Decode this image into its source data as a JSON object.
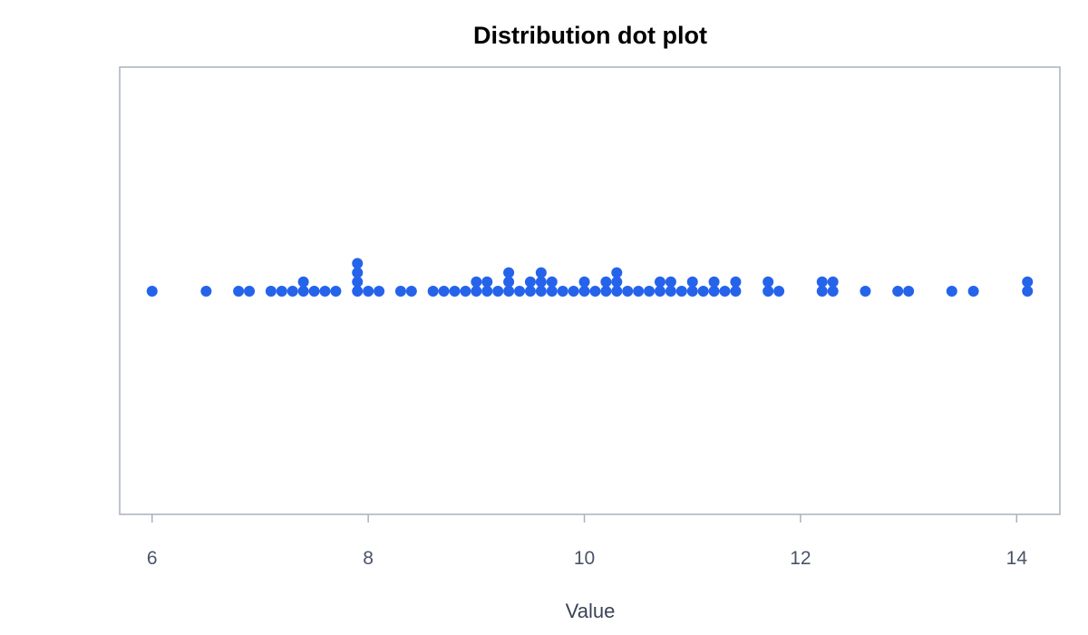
{
  "chart_data": {
    "type": "scatter",
    "subtype": "dot-plot",
    "title": "Distribution dot plot",
    "xlabel": "Value",
    "ylabel": "",
    "xlim": [
      5.7,
      14.4
    ],
    "xticks": [
      6,
      8,
      10,
      12,
      14
    ],
    "grid": false,
    "legend": "none",
    "dot_color": "#2563eb",
    "frame_color": "#a8b1bf",
    "series": [
      {
        "values": [
          6.0,
          6.5,
          6.8,
          6.9,
          7.1,
          7.2,
          7.3,
          7.4,
          7.4,
          7.5,
          7.6,
          7.7,
          7.9,
          7.9,
          7.9,
          7.9,
          8.0,
          8.1,
          8.3,
          8.4,
          8.6,
          8.7,
          8.8,
          8.9,
          9.0,
          9.0,
          9.1,
          9.1,
          9.2,
          9.3,
          9.3,
          9.3,
          9.4,
          9.5,
          9.5,
          9.6,
          9.6,
          9.6,
          9.7,
          9.7,
          9.8,
          9.9,
          10.0,
          10.0,
          10.1,
          10.2,
          10.2,
          10.3,
          10.3,
          10.3,
          10.4,
          10.5,
          10.6,
          10.7,
          10.7,
          10.8,
          10.8,
          10.9,
          11.0,
          11.0,
          11.1,
          11.2,
          11.2,
          11.3,
          11.4,
          11.4,
          11.7,
          11.7,
          11.8,
          12.2,
          12.2,
          12.3,
          12.3,
          12.6,
          12.9,
          13.0,
          13.4,
          13.6,
          14.1,
          14.1
        ]
      }
    ]
  }
}
